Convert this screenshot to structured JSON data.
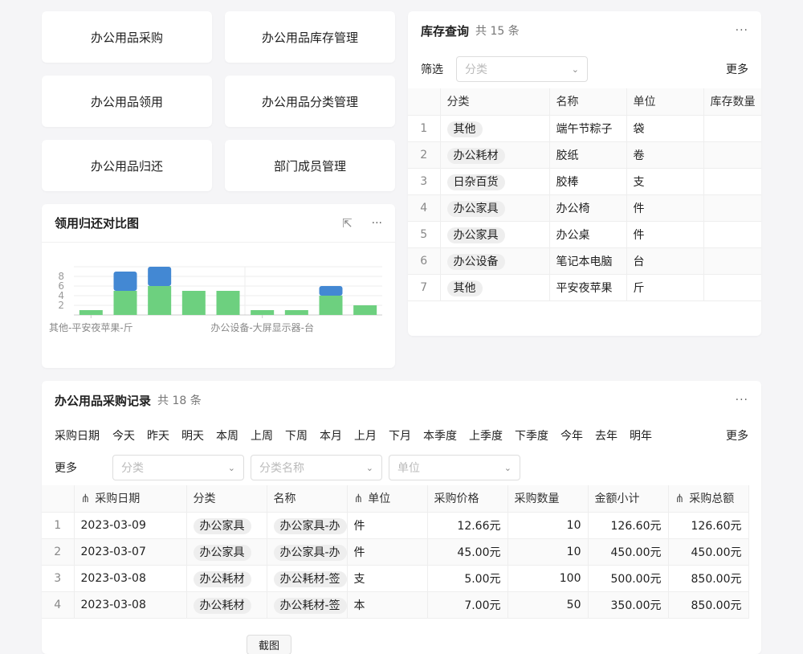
{
  "nav": [
    "办公用品采购",
    "办公用品库存管理",
    "办公用品领用",
    "办公用品分类管理",
    "办公用品归还",
    "部门成员管理"
  ],
  "chart_card": {
    "title": "领用归还对比图"
  },
  "chart_data": {
    "type": "bar",
    "stacked": true,
    "categories": [
      "其他-平安夜苹果-斤",
      "",
      "",
      "",
      "",
      "办公设备-大屏显示器-台",
      "",
      "",
      ""
    ],
    "series": [
      {
        "values": [
          1,
          5,
          6,
          5,
          5,
          1,
          1,
          4,
          2
        ],
        "color": "#6dd07f"
      },
      {
        "values": [
          0,
          4,
          4,
          0,
          0,
          0,
          0,
          2,
          0
        ],
        "color": "#4388d3"
      }
    ],
    "yticks": [
      2,
      4,
      6,
      8
    ],
    "ylim": [
      0,
      10
    ],
    "grid": true
  },
  "inventory": {
    "title": "库存查询",
    "count": "共 15 条",
    "filter_label": "筛选",
    "filter_placeholder": "分类",
    "more": "更多",
    "columns": [
      "分类",
      "名称",
      "单位",
      "库存数量"
    ],
    "rows": [
      [
        "1",
        "其他",
        "端午节粽子",
        "袋"
      ],
      [
        "2",
        "办公耗材",
        "胶纸",
        "卷"
      ],
      [
        "3",
        "日杂百货",
        "胶棒",
        "支"
      ],
      [
        "4",
        "办公家具",
        "办公椅",
        "件"
      ],
      [
        "5",
        "办公家具",
        "办公桌",
        "件"
      ],
      [
        "6",
        "办公设备",
        "笔记本电脑",
        "台"
      ],
      [
        "7",
        "其他",
        "平安夜苹果",
        "斤"
      ]
    ]
  },
  "purchase": {
    "title": "办公用品采购记录",
    "count": "共 18 条",
    "date_label": "采购日期",
    "quick": [
      "今天",
      "昨天",
      "明天",
      "本周",
      "上周",
      "下周",
      "本月",
      "上月",
      "下月",
      "本季度",
      "上季度",
      "下季度",
      "今年",
      "去年",
      "明年"
    ],
    "more": "更多",
    "more2": "更多",
    "filters": [
      "分类",
      "分类名称",
      "单位"
    ],
    "columns": [
      "采购日期",
      "分类",
      "名称",
      "单位",
      "采购价格",
      "采购数量",
      "金额小计",
      "采购总额"
    ],
    "rows": [
      [
        "1",
        "2023-03-09",
        "办公家具",
        "办公家具-办",
        "件",
        "12.66元",
        "10",
        "126.60元",
        "126.60元"
      ],
      [
        "2",
        "2023-03-07",
        "办公家具",
        "办公家具-办",
        "件",
        "45.00元",
        "10",
        "450.00元",
        "450.00元"
      ],
      [
        "3",
        "2023-03-08",
        "办公耗材",
        "办公耗材-签",
        "支",
        "5.00元",
        "100",
        "500.00元",
        "850.00元"
      ],
      [
        "4",
        "2023-03-08",
        "办公耗材",
        "办公耗材-签",
        "本",
        "7.00元",
        "50",
        "350.00元",
        "850.00元"
      ]
    ],
    "bottom_button": "截图"
  }
}
